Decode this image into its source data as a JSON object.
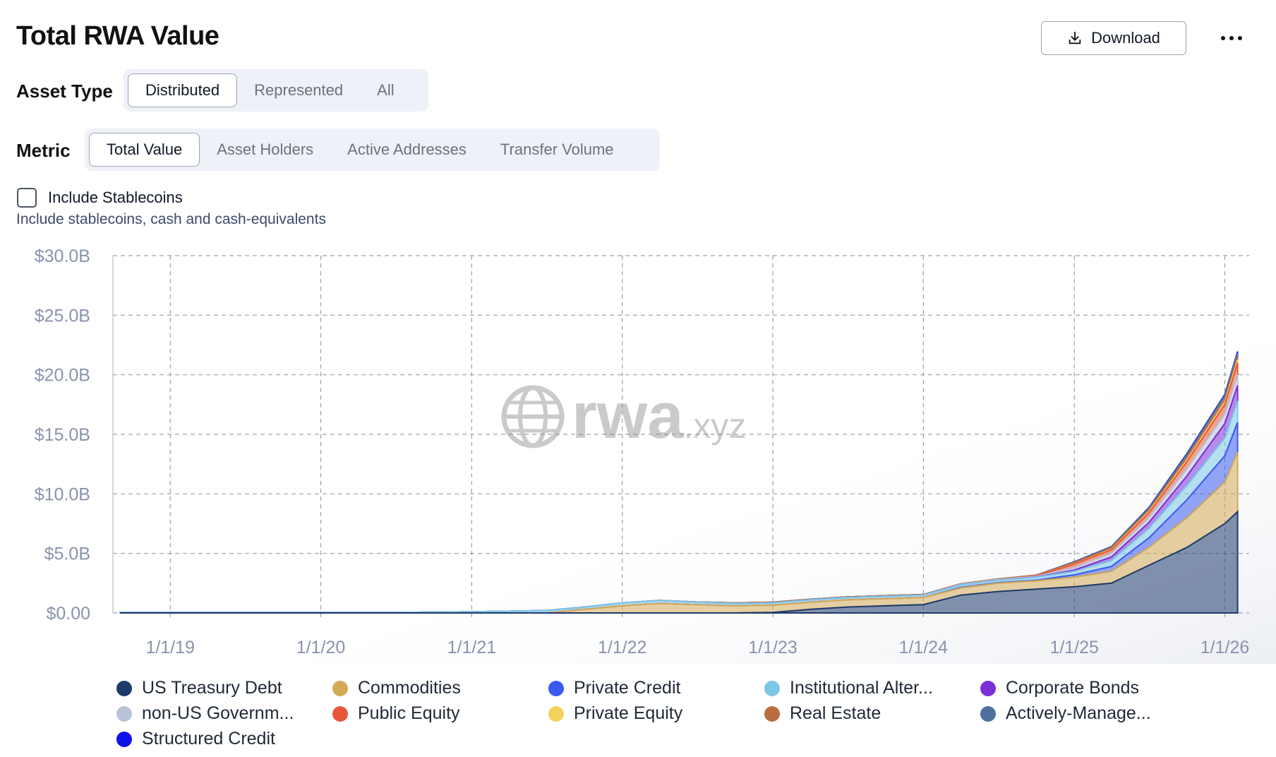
{
  "header": {
    "title": "Total RWA Value",
    "download_label": "Download"
  },
  "asset_type": {
    "label": "Asset Type",
    "options": [
      "Distributed",
      "Represented",
      "All"
    ],
    "selected": "Distributed"
  },
  "metric": {
    "label": "Metric",
    "options": [
      "Total Value",
      "Asset Holders",
      "Active Addresses",
      "Transfer Volume"
    ],
    "selected": "Total Value"
  },
  "stablecoins": {
    "label": "Include Stablecoins",
    "hint": "Include stablecoins, cash and cash-equivalents",
    "checked": false
  },
  "watermark": "rwa.xyz",
  "chart_data": {
    "type": "area",
    "stacked": true,
    "x_labels": [
      "1/1/19",
      "1/1/20",
      "1/1/21",
      "1/1/22",
      "1/1/23",
      "1/1/24",
      "1/1/25",
      "1/1/26"
    ],
    "y_ticks": [
      "$0.00",
      "$5.0B",
      "$10.0B",
      "$15.0B",
      "$20.0B",
      "$25.0B",
      "$30.0B"
    ],
    "ylim": [
      0,
      30
    ],
    "grid": true,
    "legend_position": "bottom",
    "x": [
      "2018-09-01",
      "2019-01-01",
      "2019-07-01",
      "2020-01-01",
      "2020-07-01",
      "2021-01-01",
      "2021-04-01",
      "2021-07-01",
      "2021-10-01",
      "2022-01-01",
      "2022-04-01",
      "2022-07-01",
      "2022-10-01",
      "2023-01-01",
      "2023-04-01",
      "2023-07-01",
      "2023-10-01",
      "2024-01-01",
      "2024-04-01",
      "2024-07-01",
      "2024-10-01",
      "2025-01-01",
      "2025-04-01",
      "2025-07-01",
      "2025-10-01",
      "2026-01-01",
      "2026-02-01"
    ],
    "series": [
      {
        "name": "US Treasury Debt",
        "color": "#1e3a6b",
        "values": [
          0,
          0,
          0,
          0,
          0,
          0,
          0,
          0,
          0,
          0,
          0,
          0,
          0,
          0.05,
          0.3,
          0.5,
          0.6,
          0.7,
          1.5,
          1.8,
          2.0,
          2.2,
          2.5,
          4.0,
          5.5,
          7.5,
          8.5
        ]
      },
      {
        "name": "Commodities",
        "color": "#d4a955",
        "values": [
          0,
          0,
          0,
          0,
          0,
          0,
          0,
          0,
          0.3,
          0.6,
          0.8,
          0.7,
          0.6,
          0.6,
          0.6,
          0.6,
          0.6,
          0.6,
          0.6,
          0.7,
          0.7,
          0.8,
          1.0,
          1.5,
          2.5,
          3.5,
          5.0
        ]
      },
      {
        "name": "Private Credit",
        "color": "#3b5bf0",
        "values": [
          0,
          0,
          0,
          0,
          0,
          0,
          0,
          0,
          0,
          0,
          0,
          0,
          0,
          0,
          0,
          0,
          0,
          0,
          0.05,
          0.05,
          0.05,
          0.2,
          0.4,
          0.8,
          1.5,
          2.2,
          2.5
        ]
      },
      {
        "name": "Institutional Alter...",
        "color": "#7cc7e8",
        "values": [
          0.05,
          0.05,
          0.05,
          0.05,
          0.05,
          0.1,
          0.15,
          0.2,
          0.2,
          0.25,
          0.25,
          0.2,
          0.2,
          0.2,
          0.2,
          0.2,
          0.2,
          0.2,
          0.2,
          0.2,
          0.25,
          0.3,
          0.5,
          0.8,
          1.2,
          1.5,
          1.8
        ]
      },
      {
        "name": "Corporate Bonds",
        "color": "#7b2fd8",
        "values": [
          0,
          0,
          0,
          0,
          0,
          0,
          0,
          0,
          0,
          0,
          0,
          0,
          0,
          0,
          0,
          0,
          0,
          0,
          0,
          0,
          0.02,
          0.1,
          0.3,
          0.5,
          0.8,
          1.2,
          1.3
        ]
      },
      {
        "name": "non-US Governm...",
        "color": "#b9c3d8",
        "values": [
          0,
          0,
          0,
          0,
          0,
          0,
          0,
          0,
          0,
          0,
          0,
          0,
          0,
          0,
          0,
          0,
          0,
          0,
          0.05,
          0.05,
          0.05,
          0.2,
          0.3,
          0.4,
          0.6,
          0.8,
          0.9
        ]
      },
      {
        "name": "Public Equity",
        "color": "#e8573a",
        "values": [
          0,
          0,
          0,
          0,
          0,
          0,
          0,
          0,
          0,
          0,
          0,
          0,
          0,
          0,
          0,
          0,
          0,
          0,
          0,
          0,
          0.05,
          0.3,
          0.3,
          0.4,
          0.6,
          0.8,
          1.0
        ]
      },
      {
        "name": "Private Equity",
        "color": "#f1d35c",
        "values": [
          0,
          0,
          0,
          0,
          0,
          0,
          0,
          0,
          0,
          0,
          0,
          0,
          0,
          0,
          0,
          0,
          0,
          0,
          0,
          0,
          0,
          0.02,
          0.05,
          0.1,
          0.15,
          0.2,
          0.25
        ]
      },
      {
        "name": "Real Estate",
        "color": "#b86e3f",
        "values": [
          0,
          0,
          0,
          0,
          0,
          0,
          0,
          0,
          0,
          0,
          0,
          0.02,
          0.05,
          0.05,
          0.05,
          0.05,
          0.05,
          0.05,
          0.05,
          0.05,
          0.05,
          0.1,
          0.1,
          0.15,
          0.2,
          0.25,
          0.25
        ]
      },
      {
        "name": "Actively-Manage...",
        "color": "#4f6f9e",
        "values": [
          0,
          0,
          0,
          0,
          0,
          0,
          0,
          0,
          0,
          0,
          0,
          0,
          0,
          0,
          0,
          0,
          0,
          0,
          0,
          0,
          0,
          0.05,
          0.1,
          0.15,
          0.25,
          0.3,
          0.35
        ]
      },
      {
        "name": "Structured Credit",
        "color": "#1010e8",
        "values": [
          0,
          0,
          0,
          0,
          0,
          0,
          0,
          0,
          0,
          0,
          0,
          0,
          0,
          0,
          0,
          0,
          0,
          0,
          0,
          0,
          0,
          0.02,
          0.02,
          0.05,
          0.08,
          0.1,
          0.1
        ]
      }
    ]
  }
}
